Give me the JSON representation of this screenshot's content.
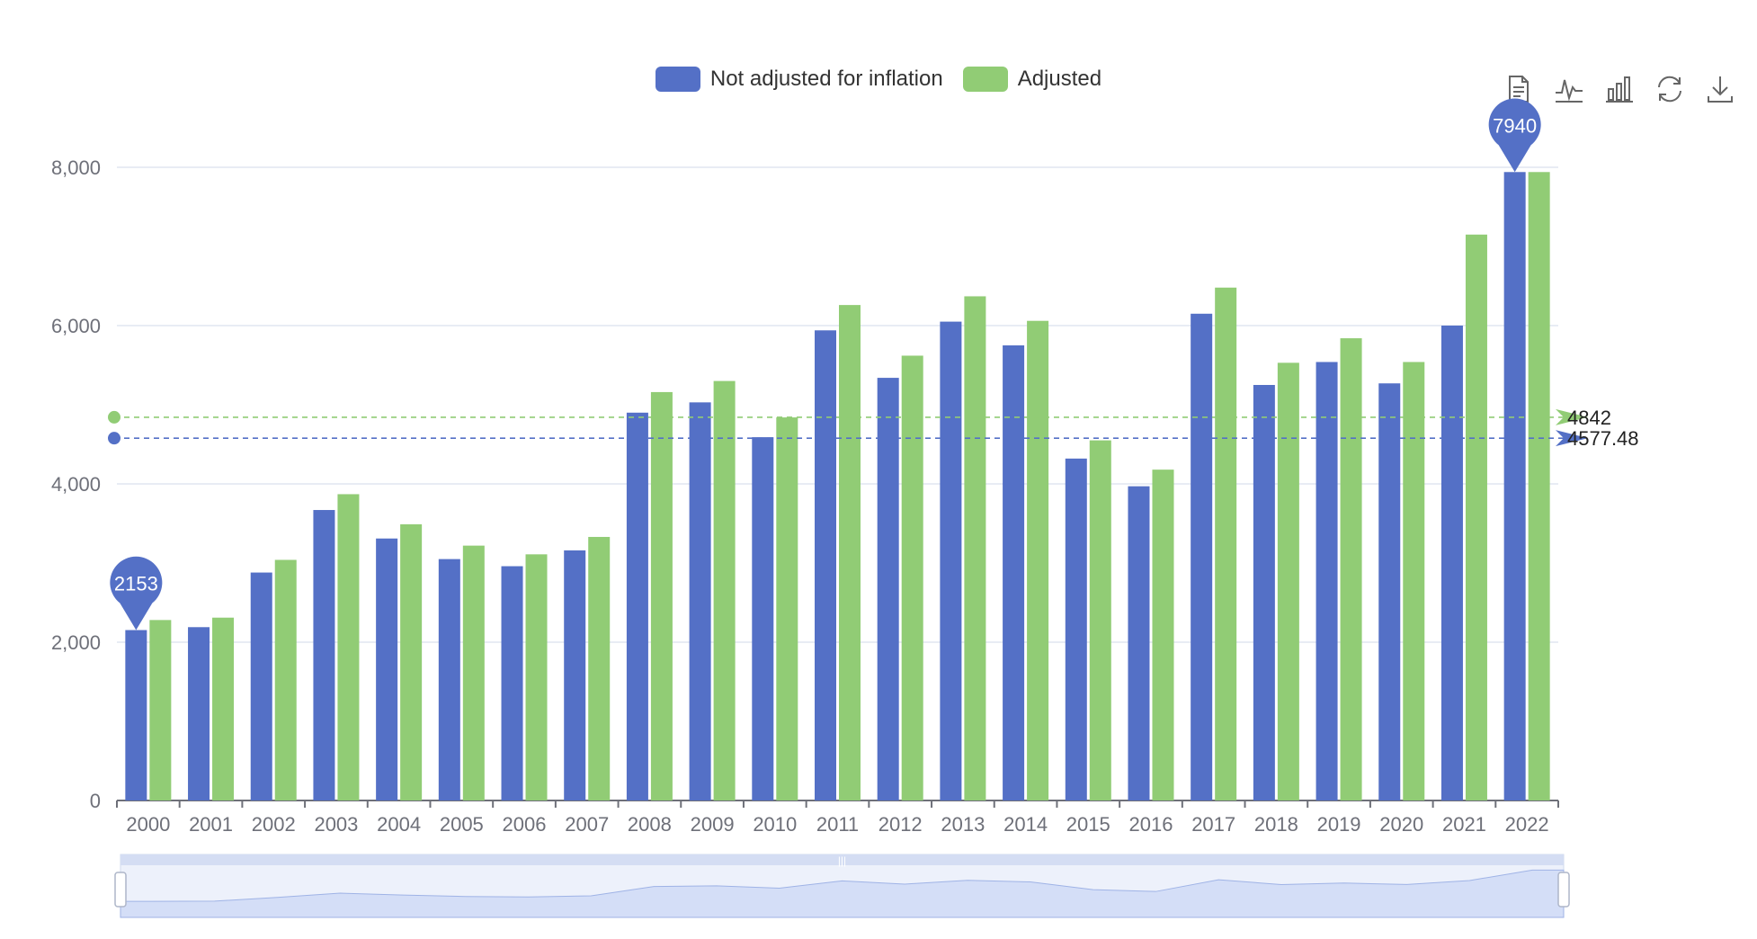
{
  "colors": {
    "series_a": "#5470c6",
    "series_b": "#91cc75",
    "axis": "#6e7079",
    "grid": "#e0e6f1"
  },
  "legend": [
    {
      "label": "Not adjusted for inflation",
      "color": "#5470c6"
    },
    {
      "label": "Adjusted",
      "color": "#91cc75"
    }
  ],
  "toolbox": [
    {
      "name": "data-view-icon"
    },
    {
      "name": "line-chart-icon"
    },
    {
      "name": "bar-chart-icon"
    },
    {
      "name": "restore-icon"
    },
    {
      "name": "save-image-icon"
    }
  ],
  "chart_data": {
    "type": "bar",
    "categories": [
      "2000",
      "2001",
      "2002",
      "2003",
      "2004",
      "2005",
      "2006",
      "2007",
      "2008",
      "2009",
      "2010",
      "2011",
      "2012",
      "2013",
      "2014",
      "2015",
      "2016",
      "2017",
      "2018",
      "2019",
      "2020",
      "2021",
      "2022"
    ],
    "series": [
      {
        "name": "Not adjusted for inflation",
        "values": [
          2153,
          2190,
          2880,
          3670,
          3310,
          3050,
          2960,
          3160,
          4900,
          5030,
          4590,
          5940,
          5340,
          6050,
          5750,
          4320,
          3970,
          6150,
          5250,
          5540,
          5270,
          6000,
          7940
        ]
      },
      {
        "name": "Adjusted",
        "values": [
          2280,
          2310,
          3040,
          3870,
          3490,
          3220,
          3110,
          3330,
          5160,
          5300,
          4840,
          6260,
          5620,
          6370,
          6060,
          4550,
          4180,
          6480,
          5530,
          5840,
          5540,
          7150,
          7940
        ]
      }
    ],
    "ylim": [
      0,
      8000
    ],
    "yticks": [
      0,
      2000,
      4000,
      6000,
      8000
    ],
    "ytick_labels": [
      "0",
      "2,000",
      "4,000",
      "6,000",
      "8,000"
    ],
    "grid": true,
    "legend_position": "top",
    "mark_points": [
      {
        "series": 0,
        "category": "2000",
        "value": 2153,
        "label": "2153"
      },
      {
        "series": 0,
        "category": "2022",
        "value": 7940,
        "label": "7940"
      }
    ],
    "mark_lines": [
      {
        "series": 1,
        "value": 4842,
        "label": "4842"
      },
      {
        "series": 0,
        "value": 4577.48,
        "label": "4577.48"
      }
    ],
    "data_zoom": {
      "start": 0,
      "end": 100
    }
  }
}
